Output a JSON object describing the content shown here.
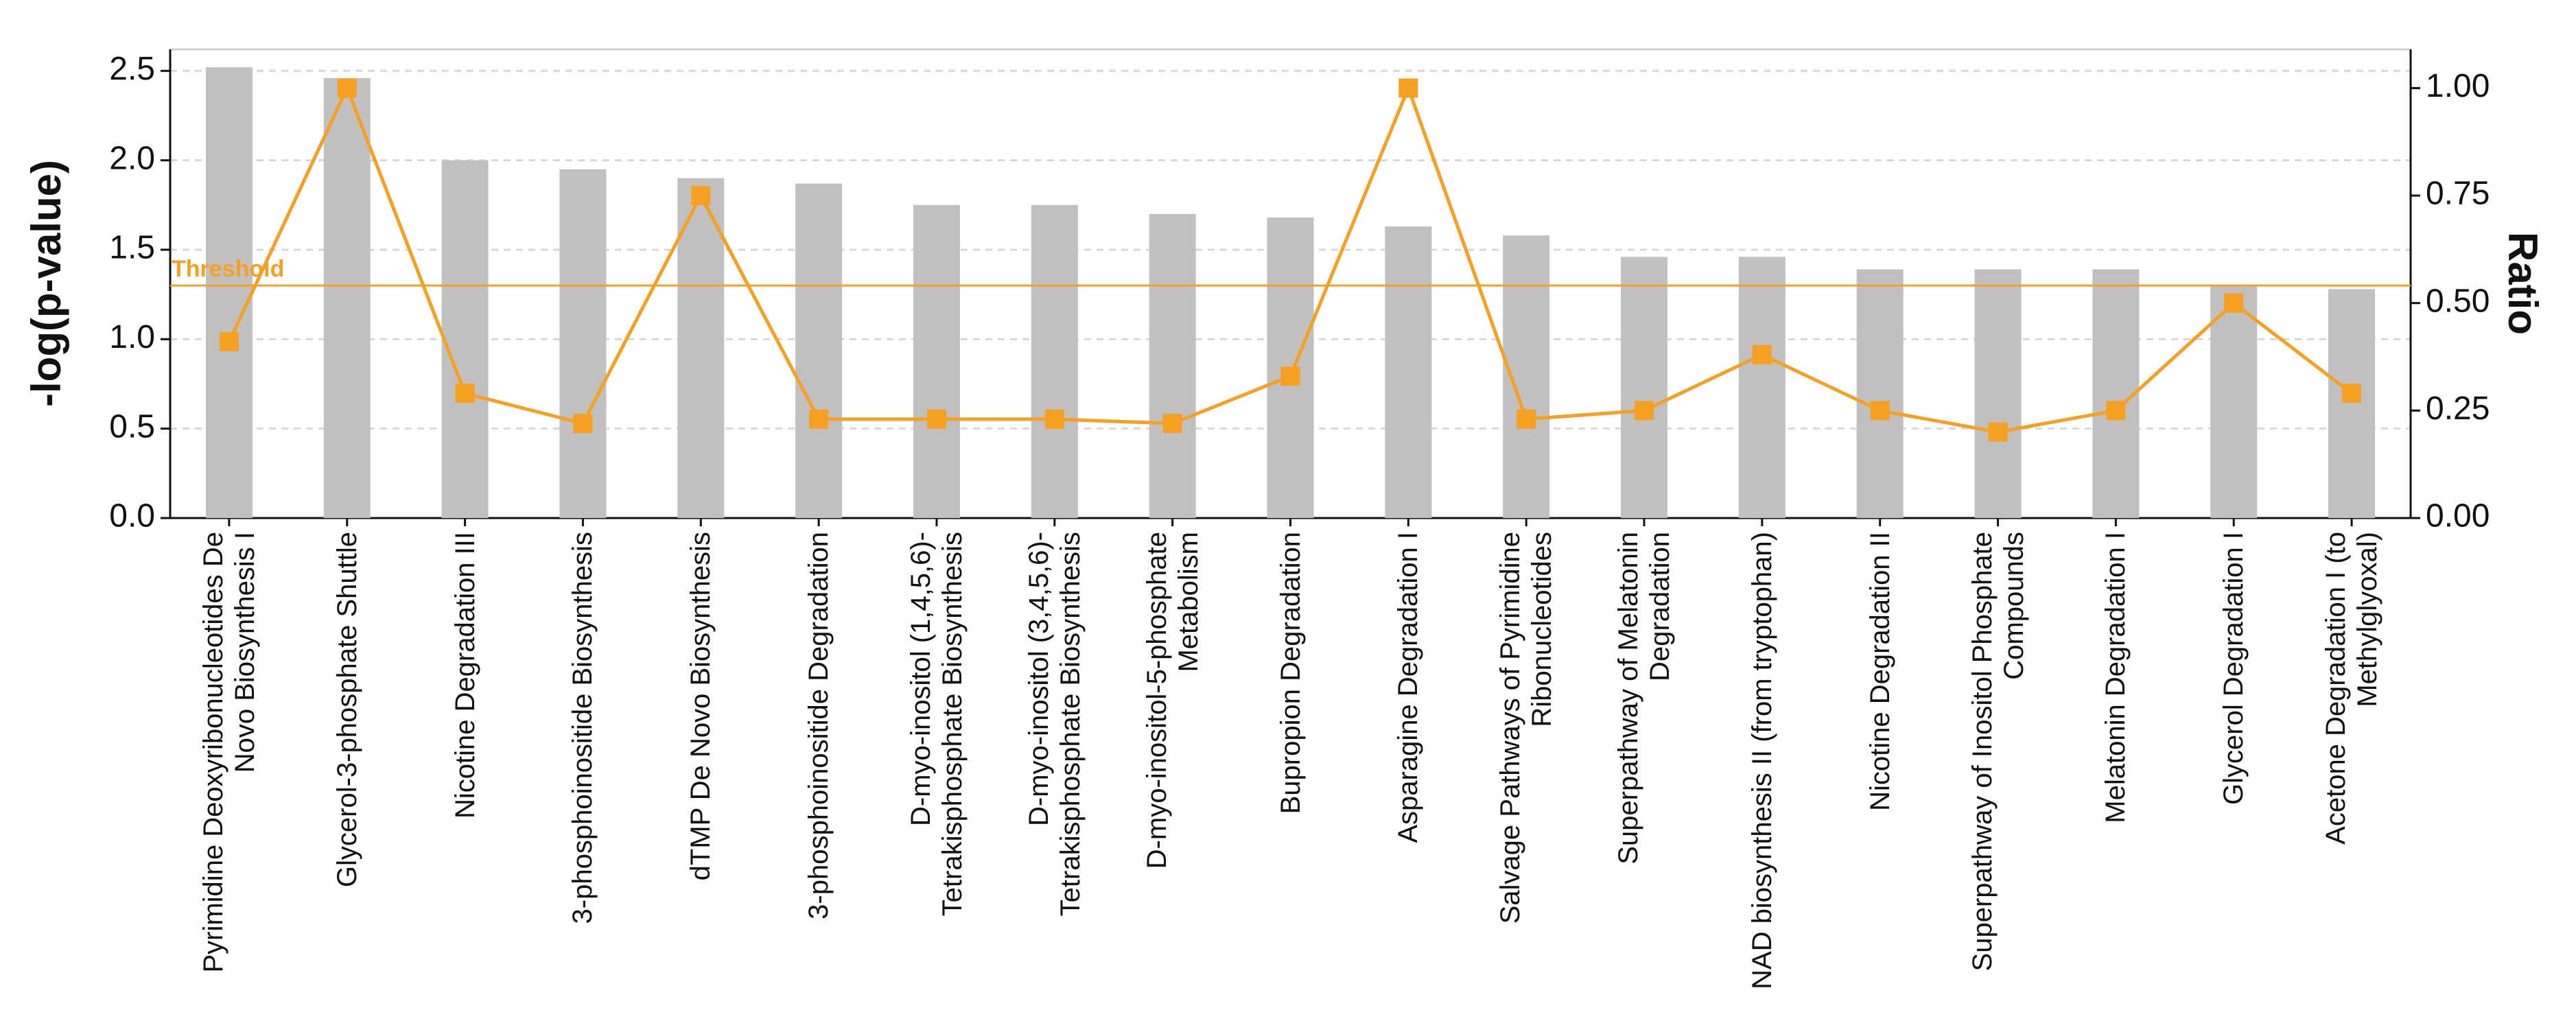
{
  "chart_data": {
    "type": "bar_line",
    "categories": [
      "Pyrimidine Deoxyribonucleotides De Novo Biosynthesis I",
      "Glycerol-3-phosphate Shuttle",
      "Nicotine Degradation III",
      "3-phosphoinositide Biosynthesis",
      "dTMP De Novo Biosynthesis",
      "3-phosphoinositide Degradation",
      "D-myo-inositol (1,4,5,6)-Tetrakisphosphate Biosynthesis",
      "D-myo-inositol (3,4,5,6)-Tetrakisphosphate Biosynthesis",
      "D-myo-inositol-5-phosphate Metabolism",
      "Bupropion Degradation",
      "Asparagine Degradation I",
      "Salvage Pathways of Pyrimidine Ribonucleotides",
      "Superpathway of Melatonin Degradation",
      "NAD biosynthesis II (from tryptophan)",
      "Nicotine Degradation II",
      "Superpathway of Inositol Phosphate Compounds",
      "Melatonin Degradation I",
      "Glycerol Degradation I",
      "Acetone Degradation I (to Methylglyoxal)"
    ],
    "series": [
      {
        "name": "-log(p-value)",
        "type": "bar",
        "color": "#c0c0c0",
        "values": [
          2.52,
          2.46,
          2.0,
          1.95,
          1.9,
          1.87,
          1.75,
          1.75,
          1.7,
          1.68,
          1.63,
          1.58,
          1.46,
          1.46,
          1.39,
          1.39,
          1.39,
          1.3,
          1.28
        ]
      },
      {
        "name": "Ratio",
        "type": "line",
        "axis": "y2",
        "color": "#f5a020",
        "values": [
          0.41,
          1.0,
          0.29,
          0.22,
          0.75,
          0.23,
          0.23,
          0.23,
          0.22,
          0.33,
          1.0,
          0.23,
          0.25,
          0.38,
          0.25,
          0.2,
          0.25,
          0.5,
          0.29
        ]
      }
    ],
    "ylabel": "-log(p-value)",
    "y2label": "Ratio",
    "ylim": [
      0,
      2.62
    ],
    "yticks": [
      {
        "value": 0,
        "label": "0.0"
      },
      0.5,
      {
        "value": 1,
        "label": "1.0"
      },
      1.5,
      {
        "value": 2,
        "label": "2.0"
      },
      2.5
    ],
    "y2lim": [
      0,
      1.09
    ],
    "y2ticks": [
      {
        "value": 0,
        "label": "0.00"
      },
      0.25,
      {
        "value": 0.5,
        "label": "0.50"
      },
      0.75,
      {
        "value": 1,
        "label": "1.00"
      }
    ],
    "threshold": {
      "label": "Threshold",
      "value": 1.3,
      "color": "#f5a020"
    },
    "grid": true
  }
}
